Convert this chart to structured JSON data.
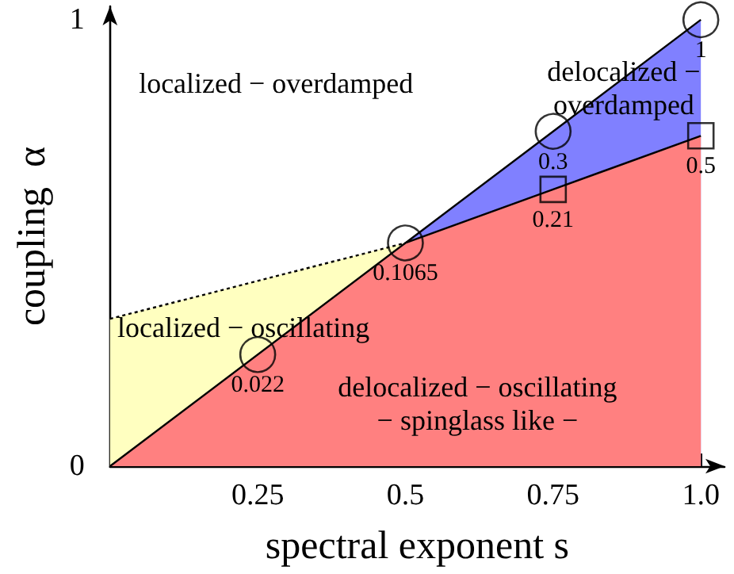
{
  "chart_data": {
    "type": "area",
    "xlabel": "spectral exponent s",
    "ylabel": "coupling  α",
    "xlim": [
      0,
      1.04
    ],
    "ylim": [
      0,
      1.03
    ],
    "xticks": [
      0.25,
      0.5,
      0.75,
      {
        "value": 1,
        "label": "1.0"
      }
    ],
    "yticks": [
      0,
      1
    ],
    "series": [
      {
        "color": "#ffffc0",
        "line_style": "dotted",
        "x": [
          0,
          0.5
        ],
        "values": [
          0.33,
          0.5
        ]
      },
      {
        "color": "#8080ff",
        "line_style": "solid",
        "x": [
          0.5,
          0.75,
          1
        ],
        "values": [
          0.5,
          0.75,
          1
        ]
      },
      {
        "color": "#ff8080",
        "line_style": "solid",
        "x": [
          0,
          0.5,
          0.75,
          1
        ],
        "values": [
          0,
          0.5,
          0.62,
          0.74
        ]
      },
      {
        "type": "scatter",
        "color": "#000000",
        "marker": "circle",
        "x": [
          0.25,
          0.5,
          0.75,
          1
        ],
        "values": [
          0.25,
          0.5,
          0.75,
          1
        ]
      },
      {
        "type": "scatter",
        "color": "#000000",
        "marker": "square",
        "x": [
          0.75,
          1
        ],
        "values": [
          0.62,
          0.74
        ]
      }
    ],
    "annotations": [
      "localized − overdamped",
      "delocalized −\noverdamped",
      "localized − oscillating",
      "delocalized − oscillating\n− spinglass like −",
      {
        "text": "0.022",
        "x": 0.25,
        "y": 0.25
      },
      {
        "text": "0.1065",
        "x": 0.5,
        "y": 0.5
      },
      {
        "text": "0.3",
        "x": 0.75,
        "y": 0.75
      },
      {
        "text": "1",
        "x": 1,
        "y": 1
      },
      {
        "text": "0.21",
        "x": 0.75,
        "y": 0.62
      },
      {
        "text": "0.5",
        "x": 1,
        "y": 0.74
      }
    ]
  }
}
